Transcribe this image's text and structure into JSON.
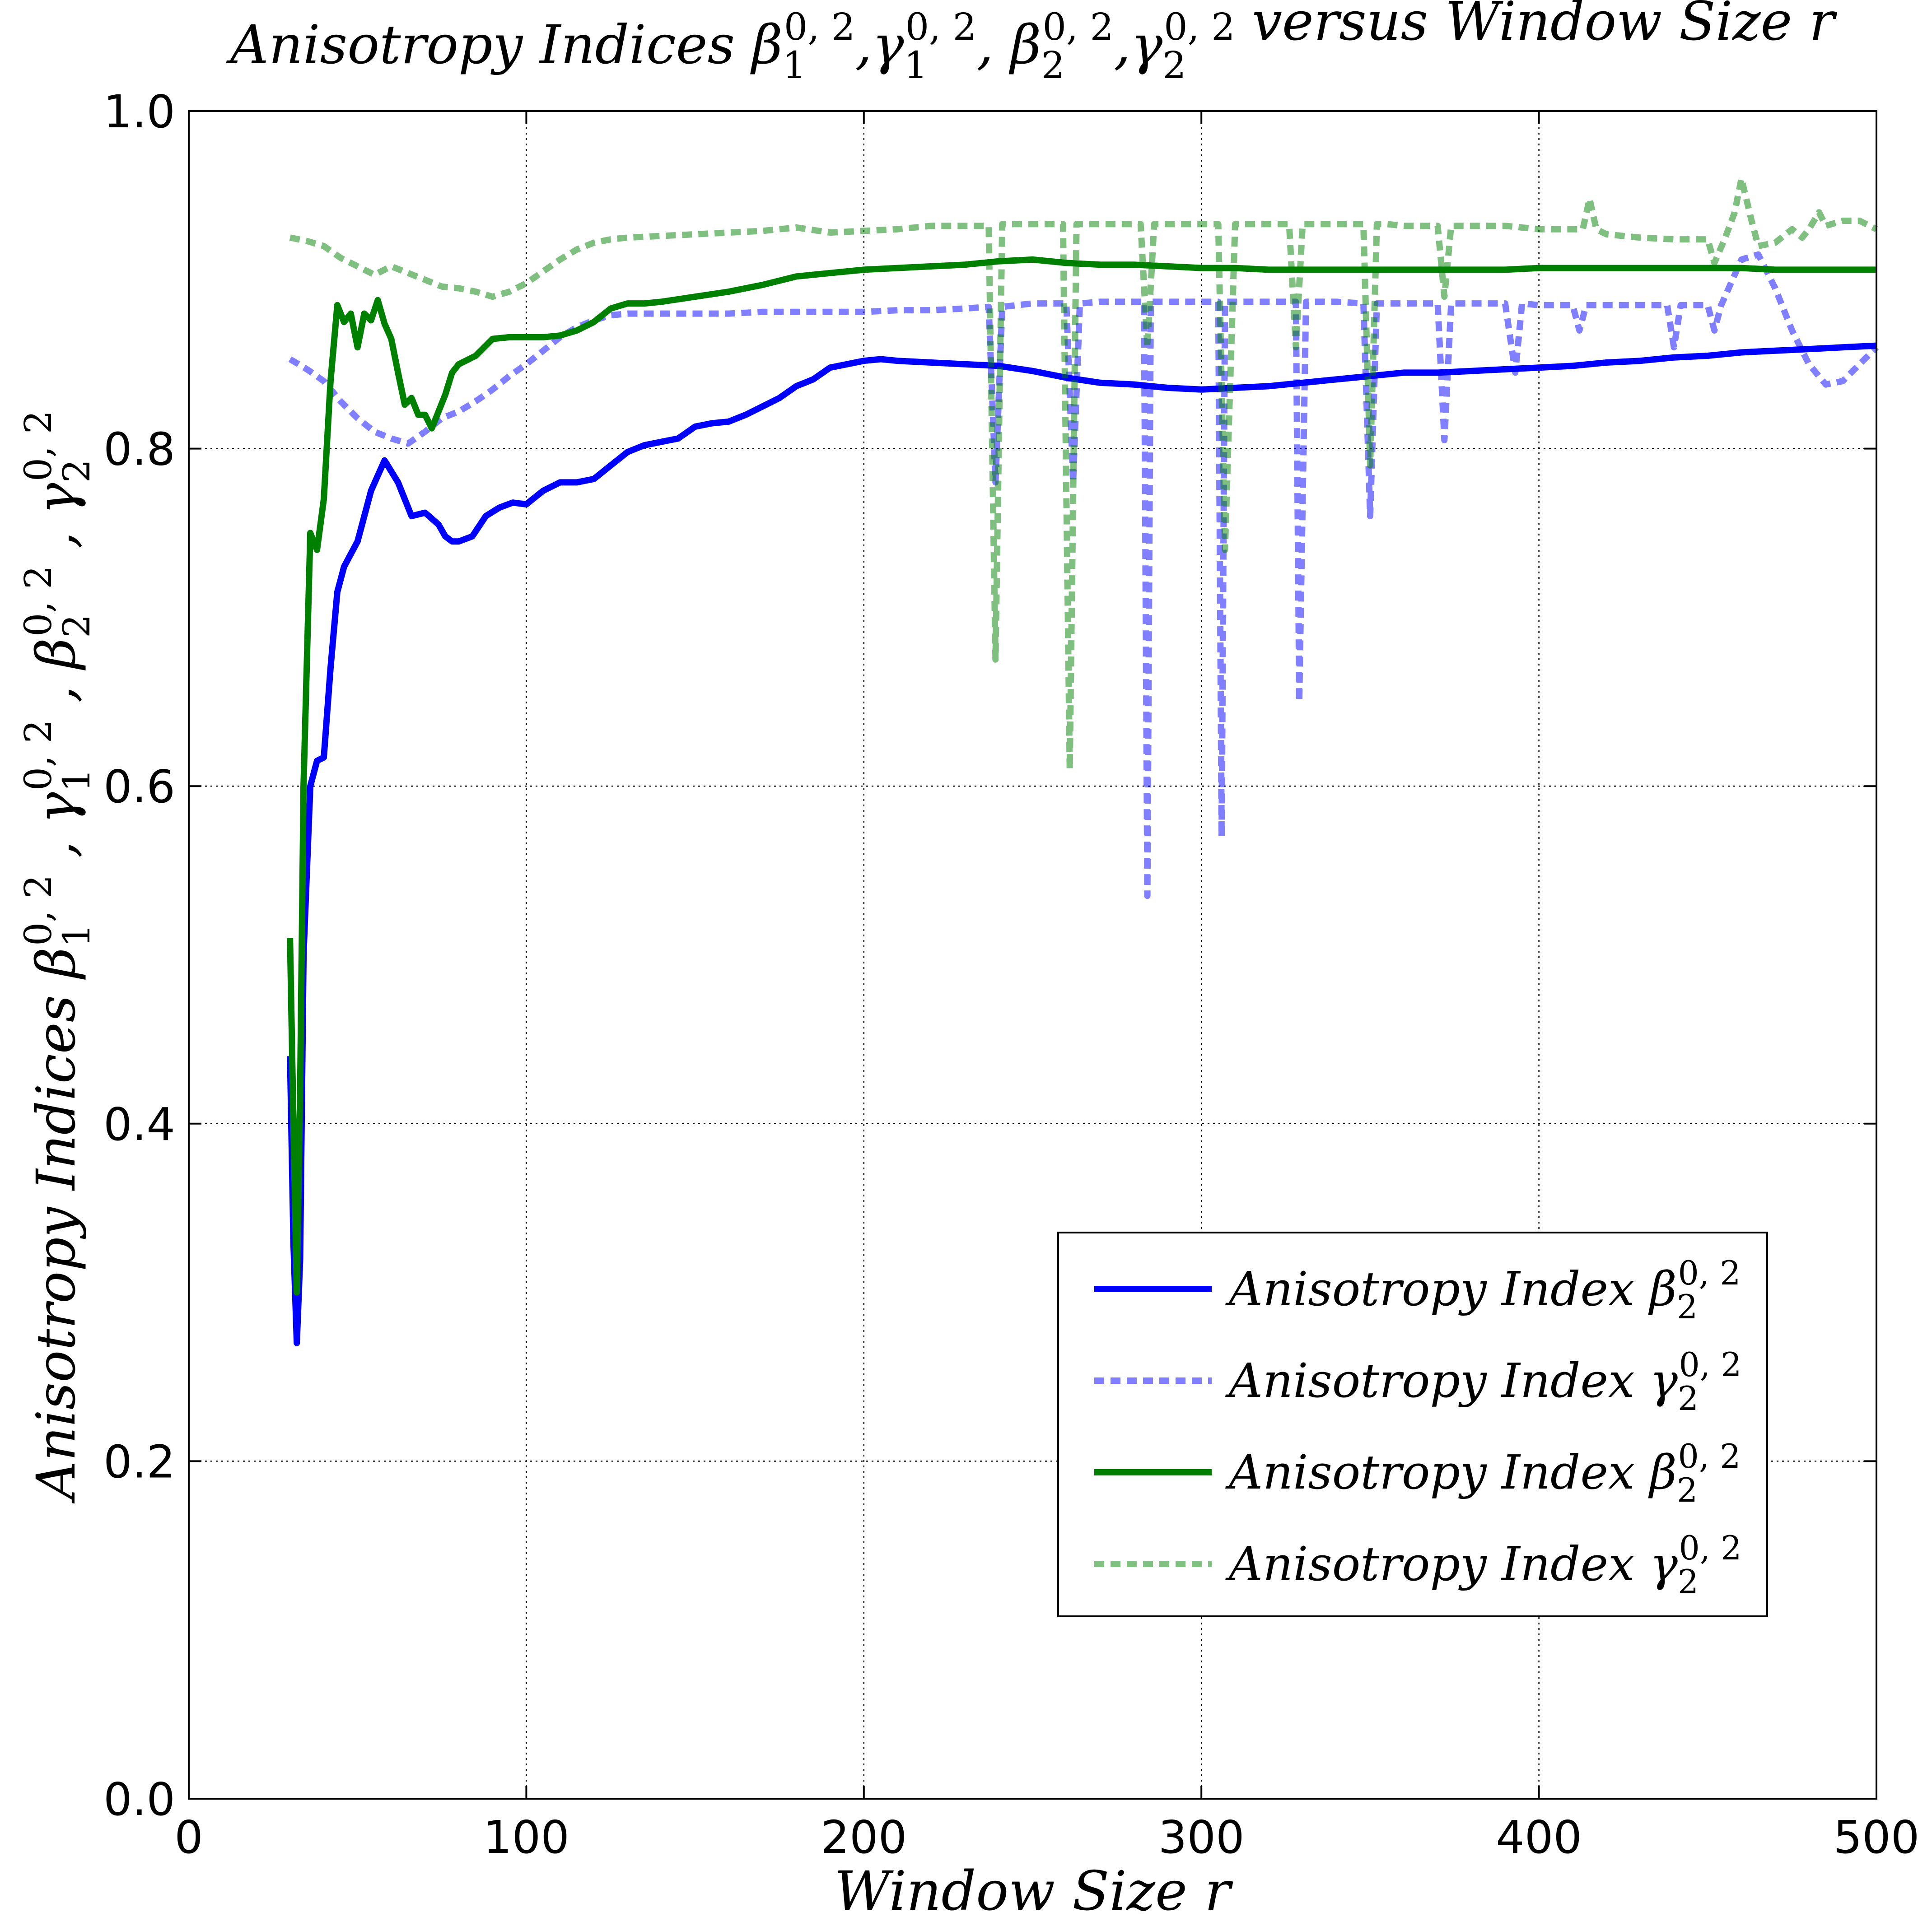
{
  "chart_data": {
    "type": "line",
    "title": {
      "prefix": "Anisotropy Indices ",
      "terms": [
        {
          "base": "β",
          "sub": "1",
          "sup": "0, 2",
          "after": ","
        },
        {
          "base": "γ",
          "sub": "1",
          "sup": "0, 2",
          "after": ", "
        },
        {
          "base": "β",
          "sub": "2",
          "sup": "0, 2",
          "after": ","
        },
        {
          "base": "γ",
          "sub": "2",
          "sup": "0, 2",
          "after": ""
        }
      ],
      "suffix": " versus Window Size r"
    },
    "xlabel": "Window Size r",
    "ylabel": {
      "prefix": "Anisotropy Indices ",
      "terms": [
        {
          "base": "β",
          "sub": "1",
          "sup": "0, 2",
          "after": " , "
        },
        {
          "base": "γ",
          "sub": "1",
          "sup": "0, 2",
          "after": " , "
        },
        {
          "base": "β",
          "sub": "2",
          "sup": "0, 2",
          "after": " , "
        },
        {
          "base": "γ",
          "sub": "2",
          "sup": "0, 2",
          "after": ""
        }
      ]
    },
    "xlim": [
      0,
      500
    ],
    "ylim": [
      0.0,
      1.0
    ],
    "xticks": [
      0,
      100,
      200,
      300,
      400,
      500
    ],
    "xtick_labels": [
      "0",
      "100",
      "200",
      "300",
      "400",
      "500"
    ],
    "yticks": [
      0.0,
      0.2,
      0.4,
      0.6,
      0.8,
      1.0
    ],
    "ytick_labels": [
      "0.0",
      "0.2",
      "0.4",
      "0.6",
      "0.8",
      "1.0"
    ],
    "grid": true,
    "legend_position": "lower-right",
    "series": [
      {
        "legend": {
          "prefix": "Anisotropy Index ",
          "base": "β",
          "sub": "2",
          "sup": "0, 2"
        },
        "color": "#0000ff",
        "opacity": 1.0,
        "style": "solid",
        "x": [
          30,
          31,
          32,
          33,
          34,
          36,
          38,
          40,
          42,
          44,
          46,
          50,
          54,
          58,
          62,
          66,
          70,
          74,
          76,
          78,
          80,
          84,
          88,
          92,
          96,
          100,
          105,
          110,
          115,
          120,
          125,
          130,
          135,
          140,
          145,
          150,
          155,
          160,
          165,
          170,
          175,
          180,
          185,
          190,
          195,
          200,
          205,
          210,
          220,
          230,
          240,
          250,
          260,
          270,
          280,
          290,
          300,
          310,
          320,
          330,
          340,
          350,
          360,
          370,
          380,
          390,
          400,
          410,
          420,
          430,
          440,
          450,
          460,
          470,
          480,
          490,
          500
        ],
        "y": [
          0.44,
          0.33,
          0.27,
          0.32,
          0.5,
          0.6,
          0.615,
          0.617,
          0.67,
          0.715,
          0.73,
          0.745,
          0.775,
          0.793,
          0.78,
          0.76,
          0.762,
          0.755,
          0.748,
          0.745,
          0.745,
          0.748,
          0.76,
          0.765,
          0.768,
          0.767,
          0.775,
          0.78,
          0.78,
          0.782,
          0.79,
          0.798,
          0.802,
          0.804,
          0.806,
          0.813,
          0.815,
          0.816,
          0.82,
          0.825,
          0.83,
          0.837,
          0.841,
          0.848,
          0.85,
          0.852,
          0.853,
          0.852,
          0.851,
          0.85,
          0.849,
          0.846,
          0.842,
          0.839,
          0.838,
          0.836,
          0.835,
          0.836,
          0.837,
          0.839,
          0.841,
          0.843,
          0.845,
          0.845,
          0.846,
          0.847,
          0.848,
          0.849,
          0.851,
          0.852,
          0.854,
          0.855,
          0.857,
          0.858,
          0.859,
          0.86,
          0.861
        ]
      },
      {
        "legend": {
          "prefix": "Anisotropy Index ",
          "base": "γ",
          "sub": "2",
          "sup": "0, 2"
        },
        "color": "#0000ff",
        "opacity": 0.5,
        "style": "dashed",
        "x": [
          30,
          35,
          40,
          45,
          50,
          55,
          60,
          65,
          70,
          75,
          80,
          85,
          90,
          95,
          100,
          105,
          110,
          115,
          120,
          125,
          130,
          140,
          150,
          160,
          170,
          180,
          190,
          200,
          210,
          220,
          230,
          237,
          239,
          241,
          250,
          260,
          262,
          264,
          270,
          280,
          283,
          284,
          285,
          287,
          290,
          300,
          305,
          306,
          307,
          309,
          315,
          325,
          328,
          329,
          331,
          340,
          348,
          350,
          352,
          360,
          370,
          372,
          374,
          380,
          390,
          393,
          395,
          400,
          410,
          412,
          414,
          420,
          430,
          438,
          440,
          442,
          450,
          452,
          454,
          460,
          465,
          470,
          475,
          480,
          485,
          490,
          495,
          500
        ],
        "y": [
          0.853,
          0.847,
          0.84,
          0.828,
          0.818,
          0.81,
          0.806,
          0.803,
          0.81,
          0.818,
          0.822,
          0.828,
          0.835,
          0.843,
          0.85,
          0.858,
          0.866,
          0.872,
          0.876,
          0.879,
          0.88,
          0.88,
          0.88,
          0.88,
          0.881,
          0.881,
          0.881,
          0.881,
          0.882,
          0.882,
          0.883,
          0.884,
          0.78,
          0.884,
          0.886,
          0.886,
          0.78,
          0.886,
          0.887,
          0.887,
          0.887,
          0.535,
          0.887,
          0.887,
          0.887,
          0.887,
          0.887,
          0.57,
          0.887,
          0.887,
          0.887,
          0.887,
          0.887,
          0.65,
          0.887,
          0.887,
          0.886,
          0.76,
          0.886,
          0.886,
          0.886,
          0.805,
          0.886,
          0.886,
          0.886,
          0.845,
          0.886,
          0.885,
          0.885,
          0.87,
          0.885,
          0.885,
          0.885,
          0.885,
          0.86,
          0.885,
          0.885,
          0.87,
          0.885,
          0.912,
          0.915,
          0.895,
          0.87,
          0.85,
          0.838,
          0.84,
          0.85,
          0.86
        ]
      },
      {
        "legend": {
          "prefix": "Anisotropy Index ",
          "base": "β",
          "sub": "2",
          "sup": "0, 2"
        },
        "color": "#008000",
        "opacity": 1.0,
        "style": "solid",
        "x": [
          30,
          31,
          32,
          33,
          34,
          36,
          37,
          38,
          40,
          42,
          44,
          46,
          48,
          50,
          52,
          54,
          56,
          58,
          60,
          62,
          64,
          66,
          68,
          70,
          72,
          74,
          76,
          78,
          80,
          85,
          90,
          95,
          100,
          105,
          110,
          115,
          120,
          125,
          130,
          135,
          140,
          150,
          160,
          170,
          180,
          190,
          200,
          210,
          220,
          230,
          240,
          250,
          260,
          270,
          280,
          290,
          300,
          310,
          320,
          330,
          340,
          350,
          360,
          370,
          380,
          390,
          400,
          410,
          420,
          430,
          440,
          450,
          460,
          470,
          480,
          490,
          500
        ],
        "y": [
          0.51,
          0.4,
          0.3,
          0.42,
          0.6,
          0.75,
          0.745,
          0.74,
          0.77,
          0.84,
          0.885,
          0.875,
          0.88,
          0.86,
          0.88,
          0.876,
          0.888,
          0.874,
          0.865,
          0.845,
          0.826,
          0.83,
          0.82,
          0.82,
          0.812,
          0.822,
          0.832,
          0.845,
          0.85,
          0.855,
          0.865,
          0.866,
          0.866,
          0.866,
          0.867,
          0.87,
          0.875,
          0.883,
          0.886,
          0.886,
          0.887,
          0.89,
          0.893,
          0.897,
          0.902,
          0.904,
          0.906,
          0.907,
          0.908,
          0.909,
          0.911,
          0.912,
          0.91,
          0.909,
          0.909,
          0.908,
          0.907,
          0.907,
          0.906,
          0.906,
          0.906,
          0.906,
          0.906,
          0.906,
          0.906,
          0.906,
          0.907,
          0.907,
          0.907,
          0.907,
          0.907,
          0.907,
          0.907,
          0.906,
          0.906,
          0.906,
          0.906
        ]
      },
      {
        "legend": {
          "prefix": "Anisotropy Index ",
          "base": "γ",
          "sub": "2",
          "sup": "0, 2"
        },
        "color": "#008000",
        "opacity": 0.5,
        "style": "dashed",
        "x": [
          30,
          35,
          40,
          45,
          50,
          55,
          60,
          65,
          70,
          75,
          80,
          85,
          90,
          95,
          100,
          105,
          110,
          115,
          120,
          125,
          130,
          140,
          150,
          160,
          170,
          175,
          180,
          190,
          200,
          210,
          220,
          230,
          235,
          237,
          239,
          241,
          243,
          250,
          255,
          259,
          261,
          263,
          265,
          270,
          275,
          280,
          282,
          284,
          286,
          290,
          300,
          303,
          305,
          307,
          310,
          320,
          324,
          326,
          328,
          330,
          340,
          345,
          348,
          350,
          352,
          355,
          360,
          366,
          368,
          370,
          372,
          374,
          380,
          390,
          400,
          410,
          413,
          415,
          417,
          420,
          430,
          440,
          450,
          452,
          455,
          458,
          460,
          463,
          465,
          470,
          475,
          478,
          480,
          483,
          485,
          490,
          495,
          500
        ],
        "y": [
          0.925,
          0.923,
          0.92,
          0.913,
          0.908,
          0.903,
          0.908,
          0.904,
          0.9,
          0.896,
          0.895,
          0.893,
          0.89,
          0.893,
          0.898,
          0.905,
          0.912,
          0.918,
          0.922,
          0.924,
          0.925,
          0.926,
          0.927,
          0.928,
          0.929,
          0.93,
          0.931,
          0.928,
          0.929,
          0.93,
          0.932,
          0.932,
          0.932,
          0.932,
          0.675,
          0.933,
          0.933,
          0.933,
          0.933,
          0.933,
          0.61,
          0.933,
          0.933,
          0.933,
          0.933,
          0.933,
          0.933,
          0.86,
          0.933,
          0.933,
          0.933,
          0.933,
          0.933,
          0.74,
          0.933,
          0.933,
          0.933,
          0.933,
          0.86,
          0.933,
          0.933,
          0.933,
          0.933,
          0.79,
          0.933,
          0.933,
          0.932,
          0.932,
          0.932,
          0.932,
          0.89,
          0.932,
          0.932,
          0.932,
          0.93,
          0.93,
          0.93,
          0.948,
          0.93,
          0.927,
          0.925,
          0.924,
          0.924,
          0.91,
          0.924,
          0.94,
          0.96,
          0.935,
          0.92,
          0.922,
          0.93,
          0.925,
          0.93,
          0.94,
          0.932,
          0.935,
          0.935,
          0.93
        ]
      }
    ]
  }
}
